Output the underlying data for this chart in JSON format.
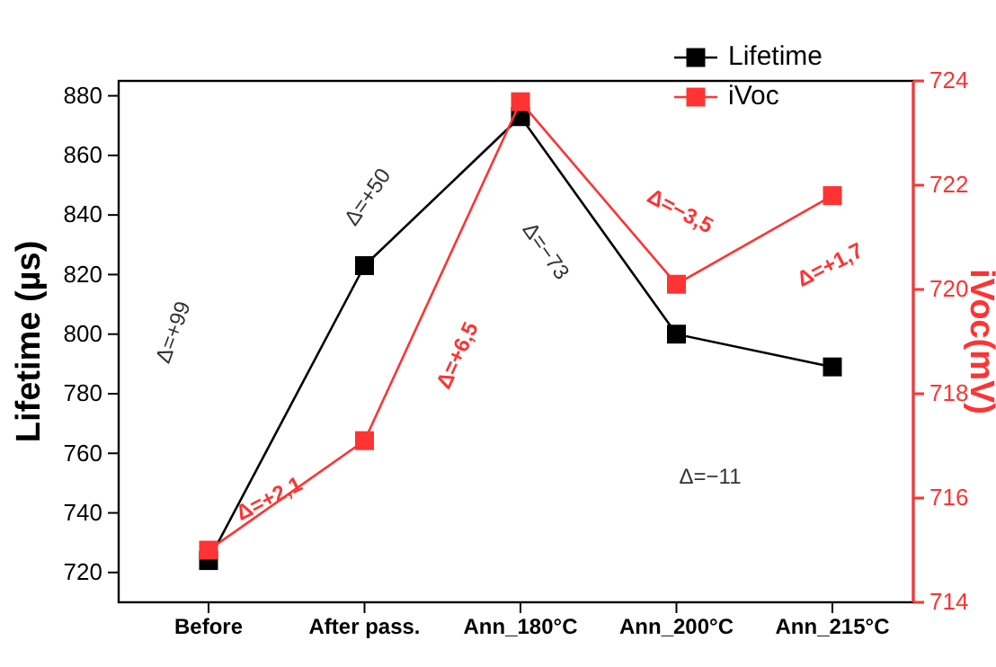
{
  "chart_data": {
    "type": "line",
    "categories": [
      "Before",
      "After pass.",
      "Ann_180°C",
      "Ann_200°C",
      "Ann_215°C"
    ],
    "series": [
      {
        "name": "Lifetime",
        "color": "#000000",
        "values": [
          724,
          823,
          873,
          800,
          789
        ]
      },
      {
        "name": "iVoc",
        "color": "#ff3333",
        "values": [
          715.0,
          717.1,
          723.6,
          720.1,
          721.8
        ],
        "axis": "y2"
      }
    ],
    "ylabel": "Lifetime (µs)",
    "y2label": "iVoc(mV)",
    "ylim": [
      710,
      885
    ],
    "yticks": [
      720,
      740,
      760,
      780,
      800,
      820,
      840,
      860,
      880
    ],
    "y2lim": [
      714,
      724
    ],
    "y2ticks": [
      714,
      716,
      718,
      720,
      722,
      724
    ],
    "annotations": [
      "Δ=+99",
      "Δ=+50",
      "Δ=−73",
      "Δ=−11",
      "Δ=+2,1",
      "Δ=+6,5",
      "Δ=−3,5",
      "Δ=+1,7"
    ],
    "marker": "square",
    "line_style": "solid",
    "legend": "top right",
    "grid": false
  }
}
